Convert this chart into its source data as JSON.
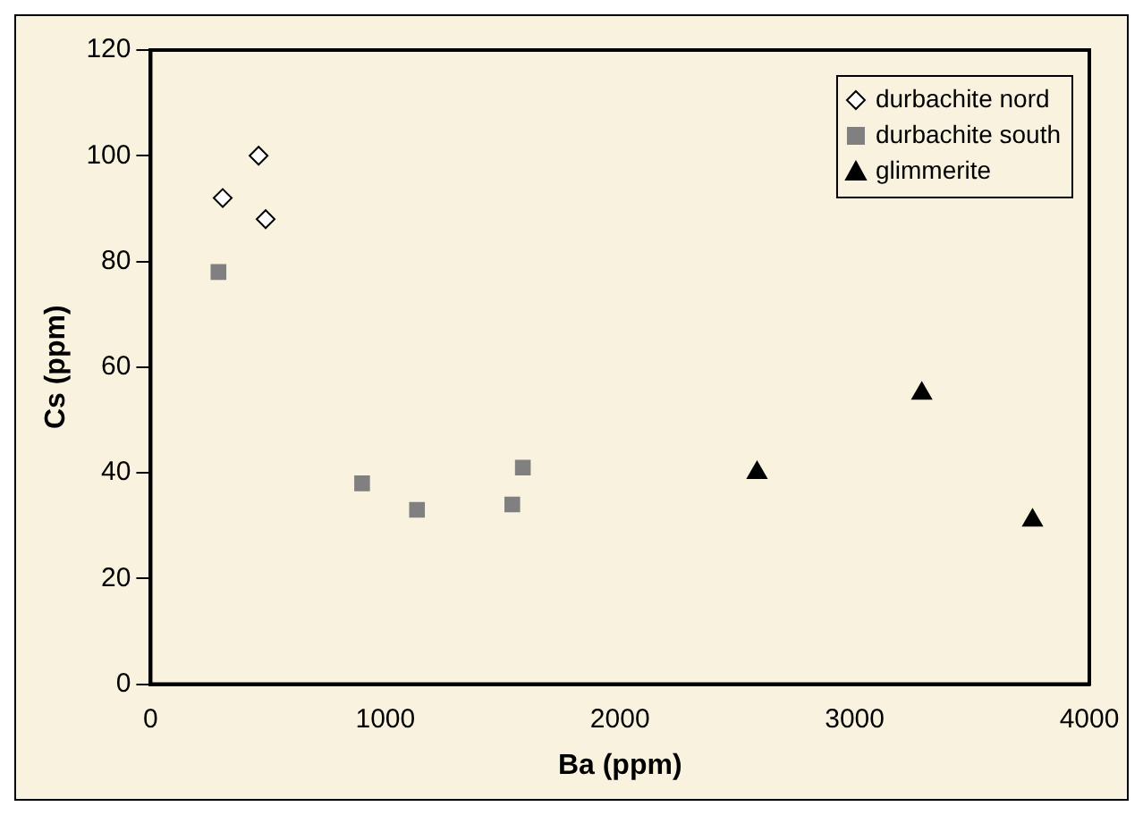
{
  "chart_data": {
    "type": "scatter",
    "xlabel": "Ba (ppm)",
    "ylabel": "Cs (ppm)",
    "xlim": [
      0,
      4000
    ],
    "xticks": [
      0,
      1000,
      2000,
      3000,
      4000
    ],
    "ylim": [
      0,
      120
    ],
    "yticks": [
      0,
      20,
      40,
      60,
      80,
      100,
      120
    ],
    "grid": false,
    "legend": "top right",
    "series": [
      {
        "name": "durbachite nord",
        "color": "#000000",
        "marker": "diamond",
        "x": [
          307,
          460,
          490
        ],
        "values": [
          92,
          100,
          88
        ]
      },
      {
        "name": "durbachite south",
        "color": "#808080",
        "marker": "square",
        "x": [
          289,
          901,
          1135,
          1541,
          1586
        ],
        "values": [
          78,
          38,
          33,
          34,
          41
        ]
      },
      {
        "name": "glimmerite",
        "color": "#000000",
        "marker": "triangle",
        "x": [
          2584,
          3286,
          3758
        ],
        "values": [
          40,
          55,
          31
        ]
      }
    ]
  }
}
